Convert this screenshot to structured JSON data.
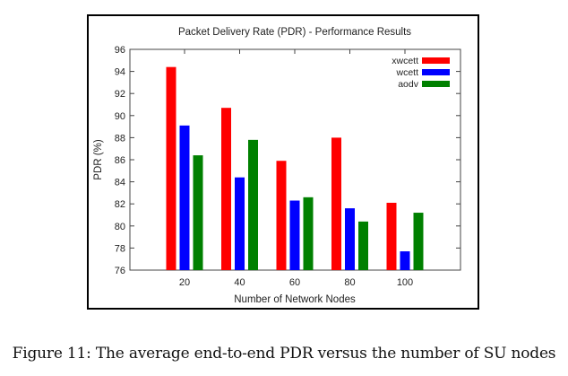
{
  "caption": "Figure 11: The average end-to-end PDR versus the number of SU nodes",
  "chart_data": {
    "type": "bar",
    "title": "Packet Delivery Rate (PDR) - Performance Results",
    "xlabel": "Number of Network Nodes",
    "ylabel": "PDR (%)",
    "categories": [
      "20",
      "40",
      "60",
      "80",
      "100"
    ],
    "ylim": [
      76,
      96
    ],
    "yticks": [
      76,
      78,
      80,
      82,
      84,
      86,
      88,
      90,
      92,
      94,
      96
    ],
    "grid": false,
    "legend_position": "top-right",
    "series": [
      {
        "name": "xwcett",
        "color": "#ff0000",
        "values": [
          94.4,
          90.7,
          85.9,
          88.0,
          82.1
        ]
      },
      {
        "name": "wcett",
        "color": "#0000ff",
        "values": [
          89.1,
          84.4,
          82.3,
          81.6,
          77.7
        ]
      },
      {
        "name": "aodv",
        "color": "#008000",
        "values": [
          86.4,
          87.8,
          82.6,
          80.4,
          81.2
        ]
      }
    ]
  }
}
